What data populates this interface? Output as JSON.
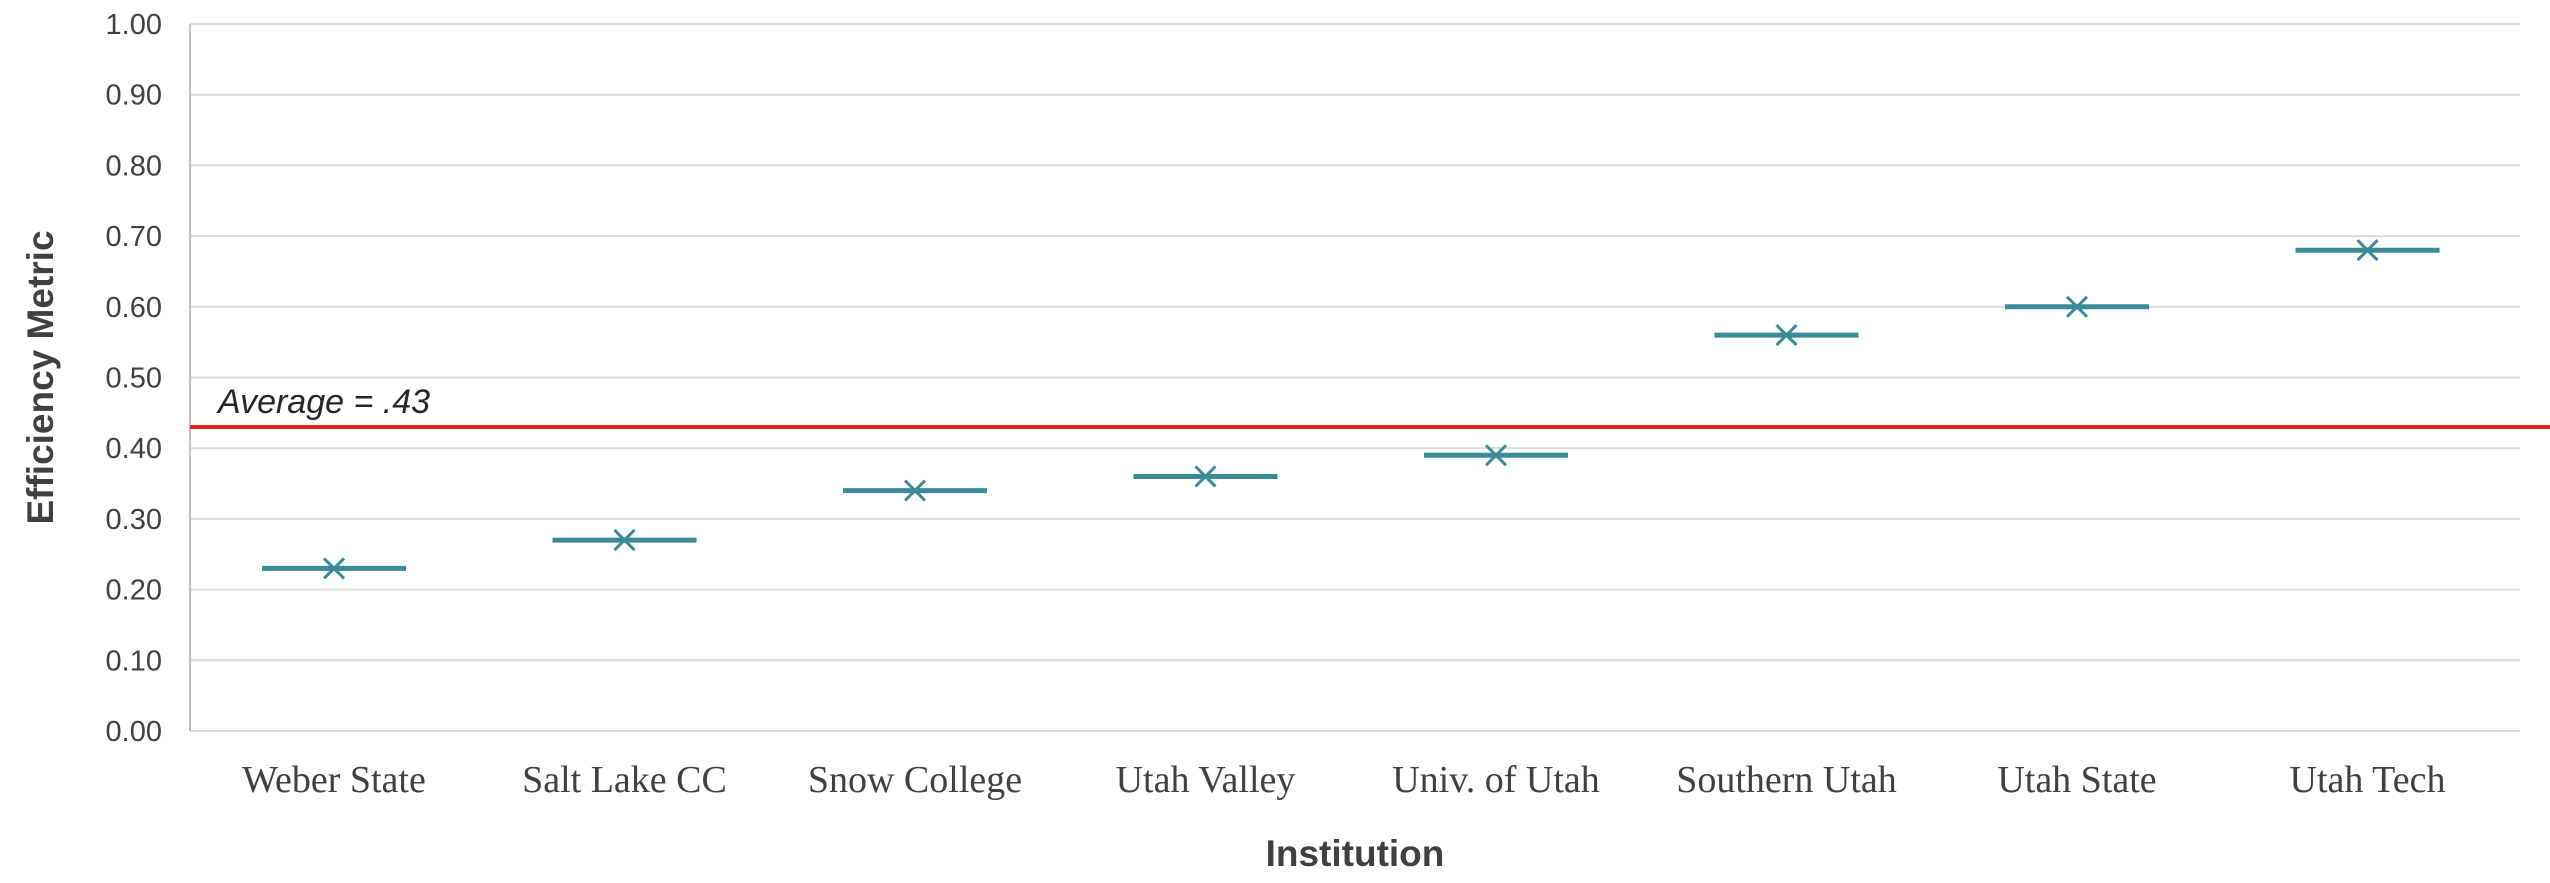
{
  "chart_data": {
    "type": "scatter",
    "title": "",
    "xlabel": "Institution",
    "ylabel": "Efficiency Metric",
    "ylim": [
      0,
      1
    ],
    "yticks": [
      "0.00",
      "0.10",
      "0.20",
      "0.30",
      "0.40",
      "0.50",
      "0.60",
      "0.70",
      "0.80",
      "0.90",
      "1.00"
    ],
    "grid": true,
    "categories": [
      "Weber State",
      "Salt Lake CC",
      "Snow College",
      "Utah Valley",
      "Univ. of Utah",
      "Southern Utah",
      "Utah State",
      "Utah Tech"
    ],
    "series": [
      {
        "values": [
          0.23,
          0.27,
          0.34,
          0.36,
          0.39,
          0.56,
          0.6,
          0.68
        ]
      }
    ],
    "reference_line": {
      "value": 0.43,
      "label": "Average = .43"
    },
    "colors": {
      "marker": "#3a8b96",
      "average_line": "#e8201c",
      "grid": "#d9d9d9",
      "axis": "#bfbfbf"
    }
  }
}
